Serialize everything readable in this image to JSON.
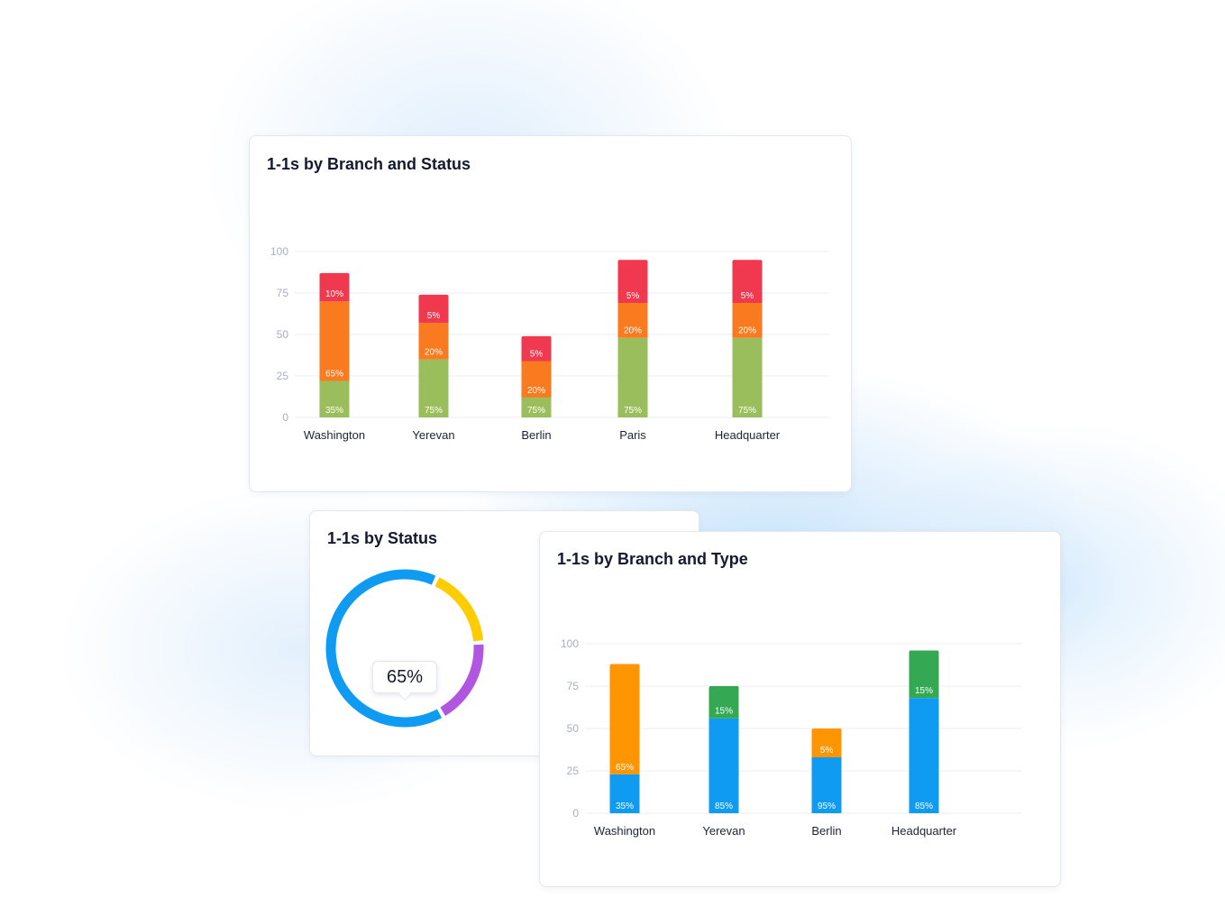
{
  "cards": {
    "branch_status": {
      "title": "1-1s by Branch and Status"
    },
    "status": {
      "title": "1-1s by Status",
      "tooltip": "65%"
    },
    "branch_type": {
      "title": "1-1s by Branch and Type"
    }
  },
  "chart_data": [
    {
      "type": "bar",
      "stacked": true,
      "title": "1-1s by Branch and Status",
      "categories": [
        "Washington",
        "Yerevan",
        "Berlin",
        "Paris",
        "Headquarter"
      ],
      "ylim": [
        0,
        100
      ],
      "yticks": [
        "0",
        "25",
        "50",
        "75",
        "100"
      ],
      "grid": true,
      "series": [
        {
          "color": "#9bbe5c",
          "values": [
            22,
            35,
            12,
            48,
            48
          ],
          "labels": [
            "35%",
            "75%",
            "75%",
            "75%",
            "75%"
          ]
        },
        {
          "color": "#f97a1f",
          "values": [
            48,
            22,
            22,
            21,
            21
          ],
          "labels": [
            "65%",
            "20%",
            "20%",
            "20%",
            "20%"
          ]
        },
        {
          "color": "#f0384f",
          "values": [
            17,
            17,
            15,
            26,
            26
          ],
          "labels": [
            "10%",
            "5%",
            "5%",
            "5%",
            "5%"
          ]
        }
      ]
    },
    {
      "type": "pie",
      "donut": true,
      "title": "1-1s by Status",
      "series": [
        {
          "name": "",
          "color": "#0f9bf2",
          "value": 65
        },
        {
          "name": "",
          "color": "#ffcc00",
          "value": 17
        },
        {
          "name": "",
          "color": "#b156e0",
          "value": 18
        }
      ],
      "highlight": "65%"
    },
    {
      "type": "bar",
      "stacked": true,
      "title": "1-1s by Branch and Type",
      "categories": [
        "Washington",
        "Yerevan",
        "Berlin",
        "Headquarter"
      ],
      "ylim": [
        0,
        100
      ],
      "yticks": [
        "0",
        "25",
        "50",
        "75",
        "100"
      ],
      "grid": true,
      "series": [
        {
          "color": "#0f9bf2",
          "values": [
            23,
            56,
            33,
            68
          ],
          "labels": [
            "35%",
            "85%",
            "95%",
            "85%"
          ]
        },
        {
          "color": "#ff9500",
          "values": [
            65,
            0,
            17,
            0
          ],
          "labels": [
            "65%",
            "",
            "5%",
            ""
          ]
        },
        {
          "color": "#34a853",
          "values": [
            0,
            19,
            0,
            28
          ],
          "labels": [
            "",
            "15%",
            "",
            "15%"
          ]
        }
      ]
    }
  ]
}
